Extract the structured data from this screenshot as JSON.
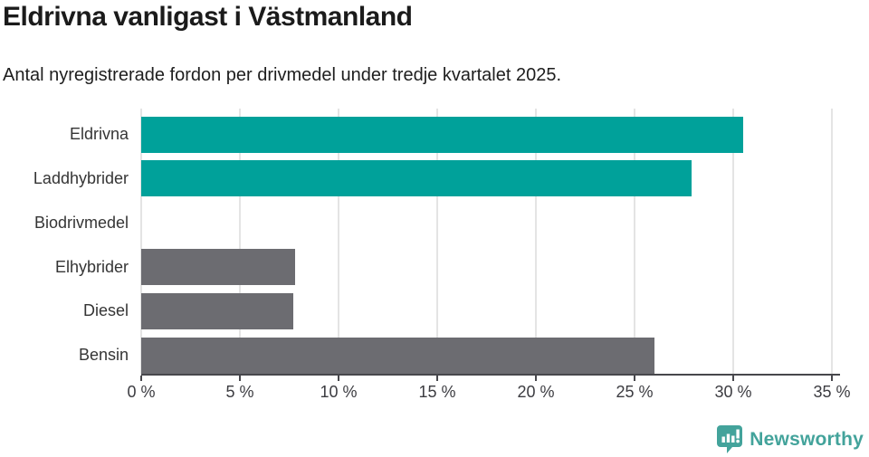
{
  "header": {
    "title": "Eldrivna vanligast i Västmanland",
    "subtitle": "Antal nyregistrerade fordon per drivmedel under tredje kvartalet 2025."
  },
  "chart_data": {
    "type": "bar",
    "orientation": "horizontal",
    "title": "Eldrivna vanligast i Västmanland",
    "subtitle": "Antal nyregistrerade fordon per drivmedel under tredje kvartalet 2025.",
    "categories": [
      "Eldrivna",
      "Laddhybrider",
      "Biodrivmedel",
      "Elhybrider",
      "Diesel",
      "Bensin"
    ],
    "values": [
      30.5,
      27.9,
      0,
      7.8,
      7.7,
      26.0
    ],
    "unit": "%",
    "xlim": [
      0,
      35
    ],
    "x_tick_values": [
      0,
      5,
      10,
      15,
      20,
      25,
      30,
      35
    ],
    "x_tick_labels": [
      "0 %",
      "5 %",
      "10 %",
      "15 %",
      "20 %",
      "25 %",
      "30 %",
      "35 %"
    ],
    "grid": true,
    "legend": "none",
    "bar_colors": [
      "#00a19a",
      "#00a19a",
      "#6c6c71",
      "#6c6c71",
      "#6c6c71",
      "#6c6c71"
    ],
    "colors": {
      "highlight": "#00a19a",
      "default": "#6c6c71",
      "gridline": "#e4e4e4",
      "axis": "#47474c"
    }
  },
  "footer": {
    "brand": "Newsworthy",
    "brand_color": "#43a39b",
    "logo_icon": "bar-chart-speech-bubble-icon"
  }
}
